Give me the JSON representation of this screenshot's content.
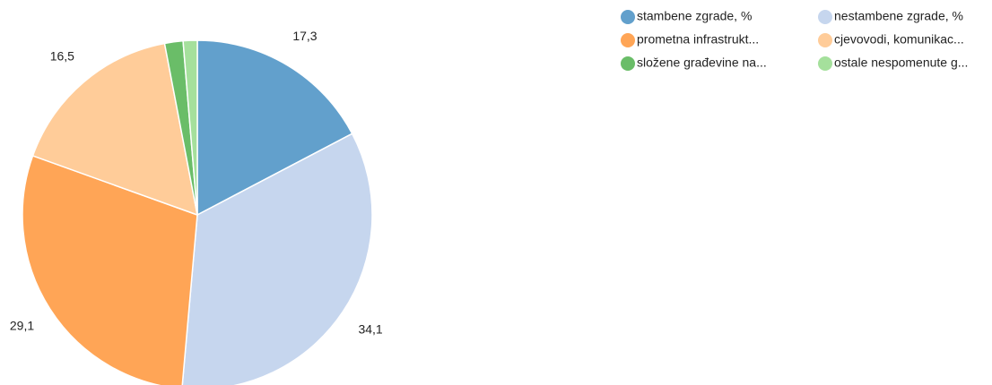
{
  "chart_data": {
    "type": "pie",
    "categories": [
      "stambene zgrade, %",
      "nestambene zgrade, %",
      "prometna infrastrukt...",
      "cjevovodi, komunikac...",
      "složene građevine na...",
      "ostale nespomenute g..."
    ],
    "values": [
      17.3,
      34.1,
      29.1,
      16.5,
      1.7,
      1.3
    ],
    "value_labels": [
      "17,3",
      "34,1",
      "29,1",
      "16,5",
      null,
      null
    ],
    "colors": [
      "#62a0cc",
      "#c6d6ee",
      "#ffa556",
      "#ffcc99",
      "#6abd68",
      "#a5e09c"
    ]
  }
}
